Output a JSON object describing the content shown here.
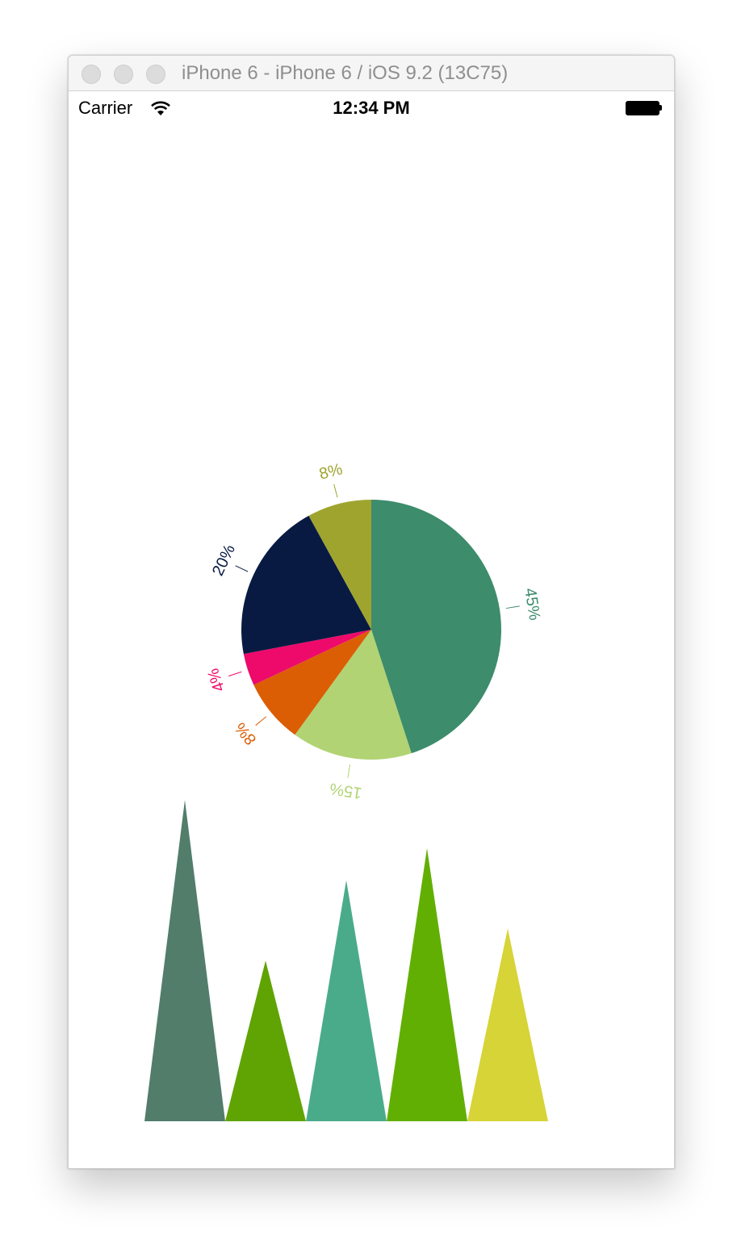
{
  "window": {
    "title": "iPhone 6 - iPhone 6 / iOS 9.2 (13C75)"
  },
  "status_bar": {
    "carrier": "Carrier",
    "time": "12:34 PM",
    "wifi_icon": "wifi-icon",
    "battery_icon": "battery-icon"
  },
  "chart_data": [
    {
      "type": "pie",
      "title": "",
      "labels": [
        "45%",
        "15%",
        "8%",
        "4%",
        "20%",
        "8%"
      ],
      "values": [
        45,
        15,
        8,
        4,
        20,
        8
      ],
      "colors": [
        "#3d8c6c",
        "#b1d374",
        "#db5e04",
        "#ed0a6b",
        "#081a42",
        "#9fa42f"
      ]
    },
    {
      "type": "bar",
      "style": "triangle",
      "title": "",
      "values": [
        400,
        200,
        300,
        340,
        240
      ],
      "ylim": [
        0,
        400
      ],
      "colors": [
        "#527d6b",
        "#5fa402",
        "#4aab8b",
        "#62af03",
        "#d6d437"
      ]
    }
  ]
}
